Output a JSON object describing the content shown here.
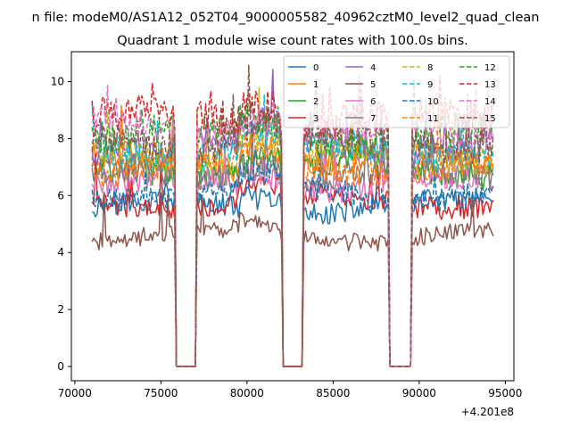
{
  "chart_data": {
    "type": "line",
    "suptitle": "n file: modeM0/AS1A12_052T04_9000005582_40962cztM0_level2_quad_clean",
    "title": "Quadrant 1 module wise count rates with 100.0s bins.",
    "xlabel": "",
    "ylabel": "",
    "xlim": [
      69800,
      95500
    ],
    "ylim": [
      -0.5,
      11.05
    ],
    "x_ticks": [
      70000,
      75000,
      80000,
      85000,
      90000,
      95000
    ],
    "x_tick_labels": [
      "70000",
      "75000",
      "80000",
      "85000",
      "90000",
      "95000"
    ],
    "y_ticks": [
      0,
      2,
      4,
      6,
      8,
      10
    ],
    "y_tick_labels": [
      "0",
      "2",
      "4",
      "6",
      "8",
      "10"
    ],
    "x_offset_label": "+4.201e8",
    "bin_seconds": 100,
    "x_start": 71000,
    "x_end": 94300,
    "gaps": [
      [
        75800,
        77100
      ],
      [
        82000,
        83300
      ],
      [
        88200,
        89600
      ]
    ],
    "legend_location": "top-right",
    "series": [
      {
        "name": "0",
        "color": "#1f77b4",
        "dash": "solid",
        "level": 5.6
      },
      {
        "name": "1",
        "color": "#ff7f0e",
        "dash": "solid",
        "level": 7.2
      },
      {
        "name": "2",
        "color": "#2ca02c",
        "dash": "solid",
        "level": 6.9
      },
      {
        "name": "3",
        "color": "#d62728",
        "dash": "solid",
        "level": 5.8
      },
      {
        "name": "4",
        "color": "#9467bd",
        "dash": "solid",
        "level": 7.8
      },
      {
        "name": "5",
        "color": "#8c564b",
        "dash": "solid",
        "level": 4.6
      },
      {
        "name": "6",
        "color": "#e377c2",
        "dash": "solid",
        "level": 6.4
      },
      {
        "name": "7",
        "color": "#7f7f7f",
        "dash": "solid",
        "level": 6.7
      },
      {
        "name": "8",
        "color": "#bcbd22",
        "dash": "dashed",
        "level": 7.4
      },
      {
        "name": "9",
        "color": "#17becf",
        "dash": "dashed",
        "level": 7.6
      },
      {
        "name": "10",
        "color": "#1f77b4",
        "dash": "dashed",
        "level": 6.1
      },
      {
        "name": "11",
        "color": "#ff7f0e",
        "dash": "dashed",
        "level": 7.0
      },
      {
        "name": "12",
        "color": "#2ca02c",
        "dash": "dashed",
        "level": 8.1
      },
      {
        "name": "13",
        "color": "#d62728",
        "dash": "dashed",
        "level": 8.7
      },
      {
        "name": "14",
        "color": "#e377c2",
        "dash": "dashed",
        "level": 8.3
      },
      {
        "name": "15",
        "color": "#8c564b",
        "dash": "dashed",
        "level": 7.9
      }
    ]
  }
}
